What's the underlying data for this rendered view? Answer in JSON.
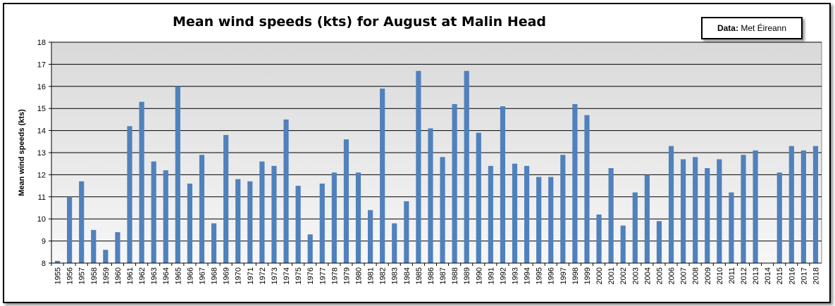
{
  "chart_data": {
    "type": "bar",
    "title": "Mean wind speeds (kts) for August at Malin Head",
    "source_label": "Data:",
    "source_value": "Met Éireann",
    "ylabel": "Mean wind speeds (kts)",
    "xlabel": "",
    "ylim": [
      8,
      18
    ],
    "yticks": [
      8,
      9,
      10,
      11,
      12,
      13,
      14,
      15,
      16,
      17,
      18
    ],
    "grid": true,
    "bar_color": "#4f81bd",
    "categories": [
      "1955",
      "1956",
      "1957",
      "1958",
      "1959",
      "1960",
      "1961",
      "1962",
      "1963",
      "1964",
      "1965",
      "1966",
      "1967",
      "1968",
      "1969",
      "1970",
      "1971",
      "1972",
      "1973",
      "1974",
      "1975",
      "1976",
      "1977",
      "1978",
      "1979",
      "1980",
      "1981",
      "1982",
      "1983",
      "1984",
      "1985",
      "1986",
      "1987",
      "1988",
      "1989",
      "1990",
      "1991",
      "1992",
      "1993",
      "1994",
      "1995",
      "1996",
      "1997",
      "1998",
      "1999",
      "2000",
      "2001",
      "2002",
      "2003",
      "2004",
      "2005",
      "2006",
      "2007",
      "2008",
      "2009",
      "2010",
      "2011",
      "2012",
      "2013",
      "2014",
      "2015",
      "2016",
      "2017",
      "2018"
    ],
    "values": [
      8.1,
      11.0,
      11.7,
      9.5,
      8.6,
      9.4,
      14.2,
      15.3,
      12.6,
      12.2,
      16.0,
      11.6,
      12.9,
      9.8,
      13.8,
      11.8,
      11.7,
      12.6,
      12.4,
      14.5,
      11.5,
      9.3,
      11.6,
      12.1,
      13.6,
      12.1,
      10.4,
      15.9,
      9.8,
      10.8,
      16.7,
      14.1,
      12.8,
      15.2,
      16.7,
      13.9,
      12.4,
      15.1,
      12.5,
      12.4,
      11.9,
      11.9,
      12.9,
      15.2,
      14.7,
      10.2,
      12.3,
      9.7,
      11.2,
      12.0,
      9.9,
      13.3,
      12.7,
      12.8,
      12.3,
      12.7,
      11.2,
      12.9,
      13.1,
      null,
      12.1,
      13.3,
      13.1,
      13.3
    ]
  }
}
